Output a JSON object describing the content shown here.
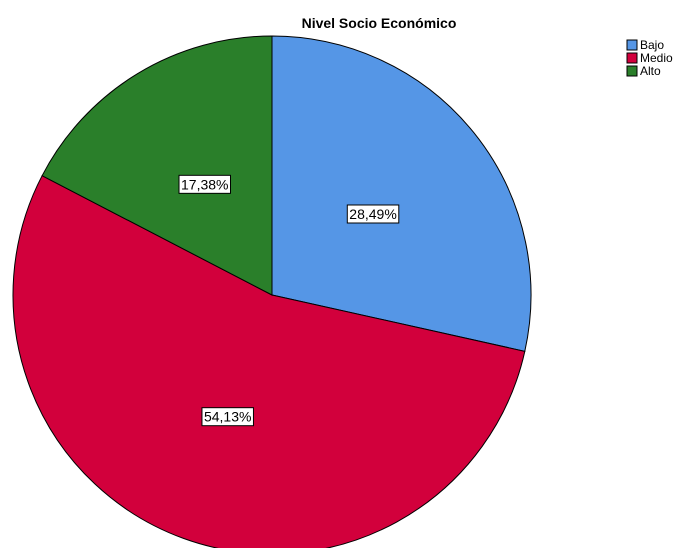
{
  "chart_data": {
    "type": "pie",
    "title": "Nivel Socio Económico",
    "categories": [
      "Bajo",
      "Medio",
      "Alto"
    ],
    "values": [
      28.49,
      54.13,
      17.38
    ],
    "labels": [
      "28,49%",
      "54,13%",
      "17,38%"
    ],
    "colors": [
      "#5596e6",
      "#d2003c",
      "#2a7f2a"
    ],
    "legend_placement": "top-right",
    "start_angle": "12 o'clock",
    "direction": "clockwise"
  }
}
